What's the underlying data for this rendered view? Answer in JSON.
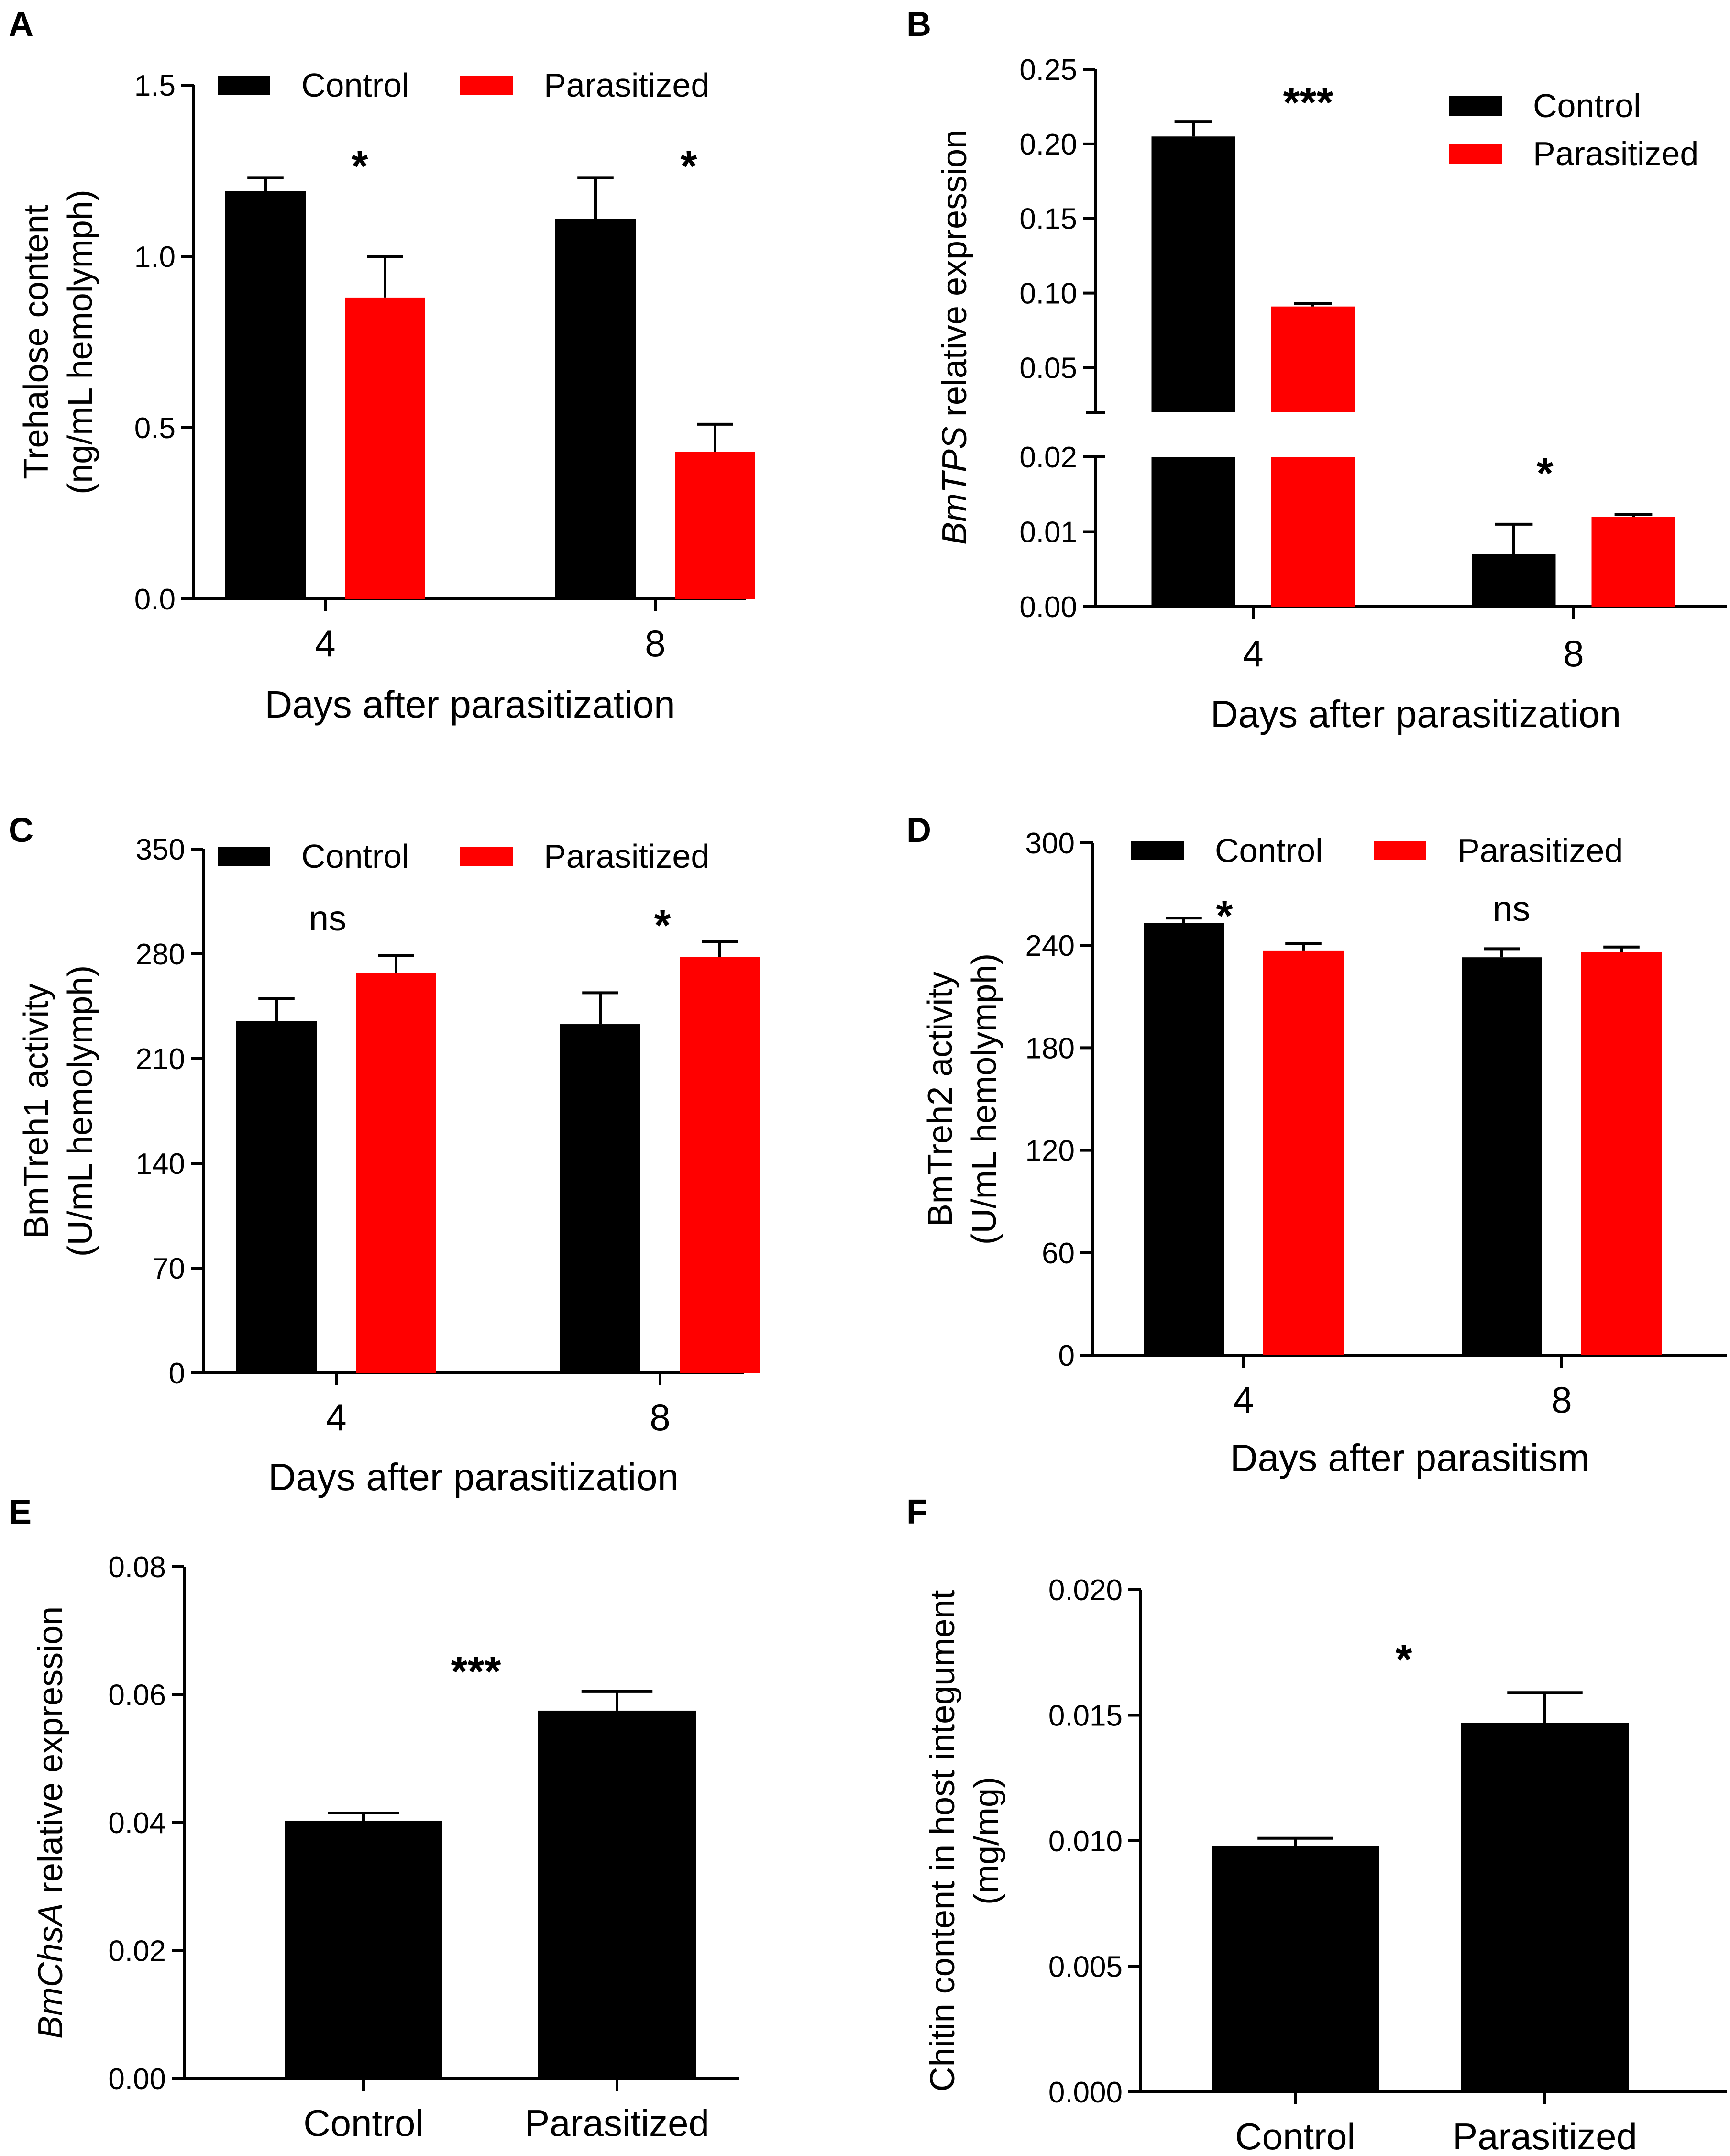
{
  "colors": {
    "control": "#000000",
    "parasitized": "#ff0000",
    "axis": "#000000"
  },
  "chart_data": [
    {
      "panel": "A",
      "type": "bar",
      "categories": [
        "4",
        "8"
      ],
      "series": [
        {
          "name": "Control",
          "values": [
            1.19,
            1.11
          ],
          "errors": [
            0.04,
            0.12
          ]
        },
        {
          "name": "Parasitized",
          "values": [
            0.88,
            0.43
          ],
          "errors": [
            0.12,
            0.08
          ]
        }
      ],
      "significance": [
        "*",
        "*"
      ],
      "ylabel_lines": [
        "Trehalose content",
        "(ng/mL hemolymph)"
      ],
      "xlabel": "Days after parasitization",
      "ylim": [
        0,
        1.5
      ],
      "yticks": [
        "0.0",
        "0.5",
        "1.0",
        "1.5"
      ],
      "legend": "top"
    },
    {
      "panel": "B",
      "type": "bar",
      "broken_axis": true,
      "categories": [
        "4",
        "8"
      ],
      "series": [
        {
          "name": "Control",
          "values": [
            0.205,
            0.007
          ],
          "errors": [
            0.01,
            0.004
          ]
        },
        {
          "name": "Parasitized",
          "values": [
            0.091,
            0.012
          ],
          "errors": [
            0.002,
            0.0003
          ]
        }
      ],
      "significance": [
        "***",
        "*"
      ],
      "ylabel_italic": "BmTPS",
      "ylabel_rest": " relative expression",
      "xlabel": "Days after parasitization",
      "ylim_lower": [
        0,
        0.02
      ],
      "ylim_upper": [
        0.02,
        0.25
      ],
      "yticks_lower": [
        "0.00",
        "0.01",
        "0.02"
      ],
      "yticks_upper": [
        "0.05",
        "0.10",
        "0.15",
        "0.20",
        "0.25"
      ],
      "legend": "top-right"
    },
    {
      "panel": "C",
      "type": "bar",
      "categories": [
        "4",
        "8"
      ],
      "series": [
        {
          "name": "Control",
          "values": [
            235,
            233
          ],
          "errors": [
            15,
            21
          ]
        },
        {
          "name": "Parasitized",
          "values": [
            267,
            278
          ],
          "errors": [
            12,
            10
          ]
        }
      ],
      "significance": [
        "ns",
        "*"
      ],
      "ylabel_lines": [
        "BmTreh1 activity",
        "(U/mL hemolymph)"
      ],
      "xlabel": "Days after parasitization",
      "ylim": [
        0,
        350
      ],
      "yticks": [
        "0",
        "70",
        "140",
        "210",
        "280",
        "350"
      ],
      "legend": "top"
    },
    {
      "panel": "D",
      "type": "bar",
      "categories": [
        "4",
        "8"
      ],
      "series": [
        {
          "name": "Control",
          "values": [
            253,
            233
          ],
          "errors": [
            3,
            5
          ]
        },
        {
          "name": "Parasitized",
          "values": [
            237,
            236
          ],
          "errors": [
            4,
            3
          ]
        }
      ],
      "significance": [
        "*",
        "ns"
      ],
      "ylabel_lines": [
        "BmTreh2 activity",
        "(U/mL hemolymph)"
      ],
      "xlabel": "Days after parasitism",
      "ylim": [
        0,
        300
      ],
      "yticks": [
        "0",
        "60",
        "120",
        "180",
        "240",
        "300"
      ],
      "legend": "top"
    },
    {
      "panel": "E",
      "type": "bar",
      "categories": [
        "Control",
        "Parasitized"
      ],
      "values": [
        0.0403,
        0.0575
      ],
      "errors": [
        0.0012,
        0.003
      ],
      "significance": "***",
      "ylabel_italic": "BmChsA",
      "ylabel_rest": " relative expression",
      "xlabel": "",
      "ylim": [
        0,
        0.08
      ],
      "yticks": [
        "0.00",
        "0.02",
        "0.04",
        "0.06",
        "0.08"
      ]
    },
    {
      "panel": "F",
      "type": "bar",
      "categories": [
        "Control",
        "Parasitized"
      ],
      "values": [
        0.0098,
        0.0147
      ],
      "errors": [
        0.0003,
        0.0012
      ],
      "significance": "*",
      "ylabel_lines": [
        "Chitin content in host integument",
        "(mg/mg)"
      ],
      "xlabel": "",
      "ylim": [
        0,
        0.02
      ],
      "yticks": [
        "0.000",
        "0.005",
        "0.010",
        "0.015",
        "0.020"
      ]
    }
  ]
}
